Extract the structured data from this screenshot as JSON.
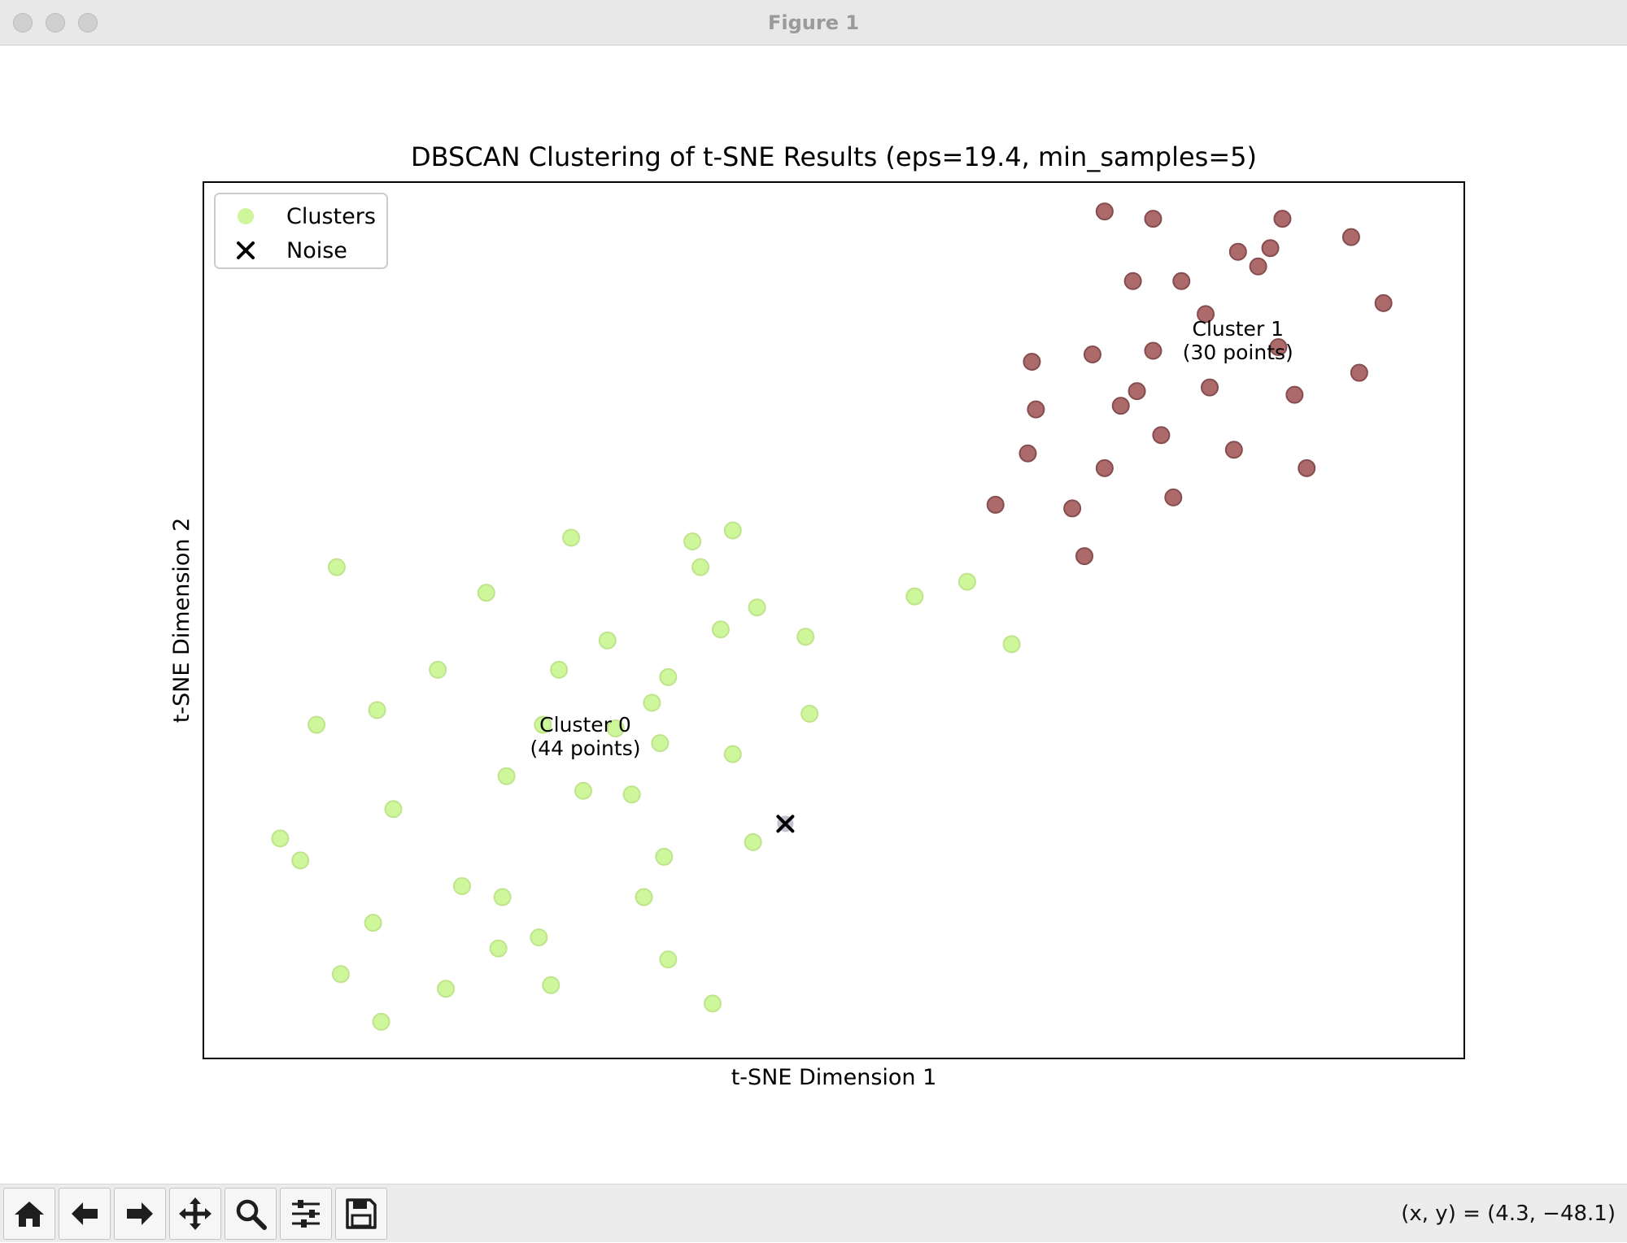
{
  "window": {
    "title": "Figure 1",
    "controls": [
      "close",
      "minimize",
      "zoom"
    ]
  },
  "toolbar": {
    "buttons": [
      {
        "name": "home",
        "icon": "home-icon"
      },
      {
        "name": "back",
        "icon": "arrow-left-icon"
      },
      {
        "name": "forward",
        "icon": "arrow-right-icon"
      },
      {
        "name": "pan",
        "icon": "move-arrows-icon"
      },
      {
        "name": "zoom",
        "icon": "magnifier-icon"
      },
      {
        "name": "configure-subplots",
        "icon": "sliders-icon"
      },
      {
        "name": "save",
        "icon": "floppy-disk-icon"
      }
    ],
    "coordinates": "(x, y) = (4.3, −48.1)"
  },
  "chart_data": {
    "type": "scatter",
    "title": "DBSCAN Clustering of t-SNE Results (eps=19.4, min_samples=5)",
    "xlabel": "t-SNE Dimension 1",
    "ylabel": "t-SNE Dimension 2",
    "ticks_visible": false,
    "grid": false,
    "legend": {
      "placement": "top-left",
      "entries": [
        {
          "label": "Clusters",
          "marker": "circle",
          "color": "#c6f58a"
        },
        {
          "label": "Noise",
          "marker": "x",
          "color": "#000000"
        }
      ]
    },
    "series": [
      {
        "name": "Cluster 0",
        "color": "#c6f58a",
        "edgecolor": "#b4e078",
        "points": [
          [
            -111,
            -14
          ],
          [
            -74,
            -21
          ],
          [
            -116,
            -57
          ],
          [
            -120,
            -94
          ],
          [
            -102,
            -111
          ],
          [
            -71,
            -118
          ],
          [
            -125,
            -88
          ],
          [
            -101,
            -53
          ],
          [
            -100,
            -138
          ],
          [
            -110,
            -125
          ],
          [
            -70,
            -104
          ],
          [
            -86,
            -42
          ],
          [
            -60,
            -57
          ],
          [
            -80,
            -101
          ],
          [
            -84,
            -129
          ],
          [
            -97,
            -80
          ],
          [
            -69,
            -71
          ],
          [
            -53,
            -6
          ],
          [
            -50,
            -75
          ],
          [
            -44,
            -34
          ],
          [
            -42,
            -58
          ],
          [
            -38,
            -76
          ],
          [
            -35,
            -104
          ],
          [
            -33,
            -51
          ],
          [
            -30,
            -93
          ],
          [
            -23,
            -7
          ],
          [
            -21,
            -14
          ],
          [
            -16,
            -31
          ],
          [
            -13,
            -4
          ],
          [
            -7,
            -25
          ],
          [
            5,
            -33
          ],
          [
            -13,
            -65
          ],
          [
            -29,
            -121
          ],
          [
            -29,
            -44
          ],
          [
            6,
            -54
          ],
          [
            -31,
            -62
          ],
          [
            -18,
            -133
          ],
          [
            -58,
            -128
          ],
          [
            -56,
            -42
          ],
          [
            -61,
            -115
          ],
          [
            -8,
            -89
          ],
          [
            32,
            -22
          ],
          [
            56,
            -35
          ],
          [
            45,
            -18
          ]
        ]
      },
      {
        "name": "Cluster 1",
        "color": "#a55a5c",
        "edgecolor": "#7a3a3c",
        "points": [
          [
            98,
            64
          ],
          [
            112,
            72
          ],
          [
            104,
            55
          ],
          [
            91,
            45
          ],
          [
            83,
            30
          ],
          [
            79,
            13
          ],
          [
            74,
            -11
          ],
          [
            52,
            3
          ],
          [
            71,
            2
          ],
          [
            62,
            29
          ],
          [
            76,
            44
          ],
          [
            60,
            17
          ],
          [
            93,
            22
          ],
          [
            96,
            5
          ],
          [
            61,
            42
          ],
          [
            91,
            81
          ],
          [
            79,
            83
          ],
          [
            86,
            64
          ],
          [
            105,
            35
          ],
          [
            117,
            68
          ],
          [
            122,
            46
          ],
          [
            120,
            73
          ],
          [
            126,
            33
          ],
          [
            111,
            18
          ],
          [
            129,
            13
          ],
          [
            123,
            81
          ],
          [
            140,
            76
          ],
          [
            148,
            58
          ],
          [
            142,
            39
          ],
          [
            87,
            34
          ]
        ]
      },
      {
        "name": "Noise",
        "marker": "x",
        "color": "#000000",
        "points": [
          [
            0,
            -84
          ]
        ]
      }
    ],
    "annotations": [
      {
        "text": "Cluster 0\n(44 points)",
        "x": -49.5,
        "y": -62
      },
      {
        "text": "Cluster 1\n(30 points)",
        "x": 112,
        "y": 46
      }
    ],
    "xlim": [
      -144,
      168
    ],
    "ylim": [
      -148,
      91
    ]
  }
}
